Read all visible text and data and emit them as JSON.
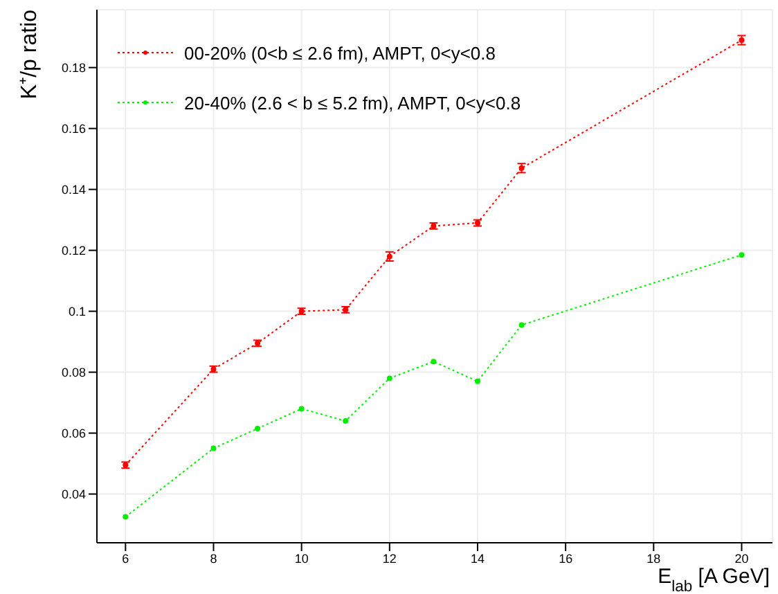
{
  "chart_data": {
    "type": "line",
    "xlabel": "E$_{lab}$  [A GeV]",
    "ylabel": "K⁺/p ratio",
    "x": [
      6,
      8,
      9,
      10,
      11,
      12,
      13,
      14,
      15,
      20
    ],
    "series": [
      {
        "name": "00-20% (0<b ≤ 2.6 fm), AMPT, 0<y<0.8",
        "color": "#ff0000",
        "values": [
          0.0495,
          0.081,
          0.0895,
          0.1,
          0.1005,
          0.118,
          0.128,
          0.129,
          0.147,
          0.189
        ],
        "errors": [
          0.001,
          0.001,
          0.001,
          0.001,
          0.001,
          0.0015,
          0.001,
          0.001,
          0.0015,
          0.0015
        ]
      },
      {
        "name": "20-40% (2.6 < b ≤ 5.2 fm), AMPT, 0<y<0.8",
        "color": "#00ee00",
        "values": [
          0.0325,
          0.055,
          0.0615,
          0.068,
          0.064,
          0.078,
          0.0835,
          0.077,
          0.0955,
          0.1185
        ]
      }
    ],
    "xlim": [
      5.35,
      20.7
    ],
    "xticks": [
      6,
      8,
      10,
      12,
      14,
      16,
      18,
      20
    ],
    "ylim": [
      0.024,
      0.199
    ],
    "yticks": [
      0.04,
      0.06,
      0.08,
      0.1,
      0.12,
      0.14,
      0.16,
      0.18
    ],
    "grid": true,
    "legend": "top left",
    "marker": "circle",
    "line_style": "dotted"
  }
}
